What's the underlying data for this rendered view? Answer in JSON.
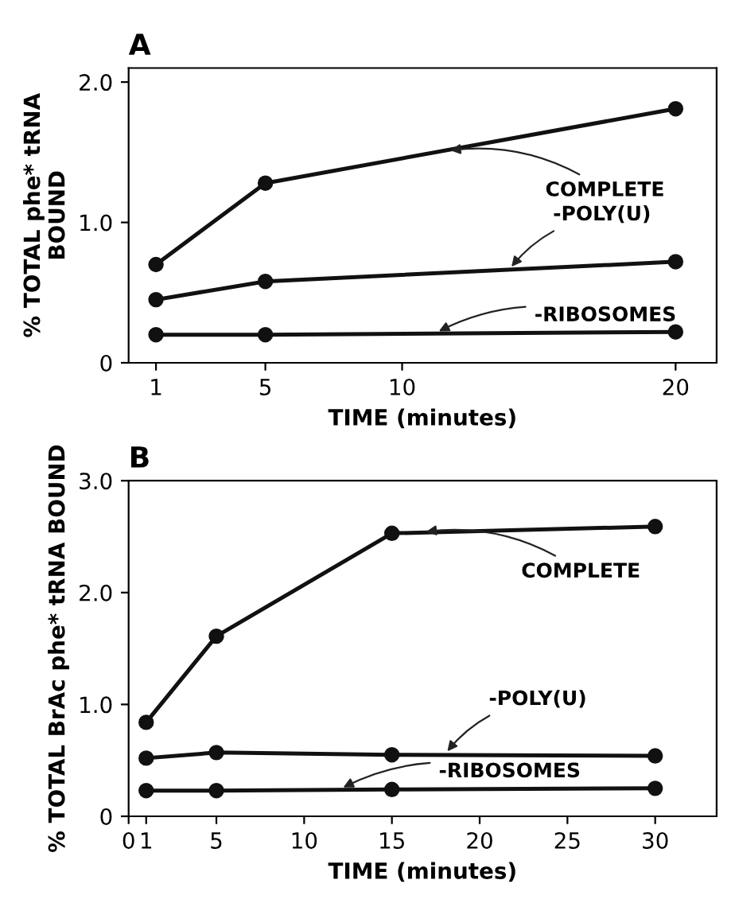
{
  "chart_data": [
    {
      "type": "line",
      "title": "A",
      "xlabel": "TIME (minutes)",
      "ylabel": "% TOTAL phe* tRNA\nBOUND",
      "x": [
        1,
        5,
        20
      ],
      "series": [
        {
          "color": "#111111",
          "values": [
            0.7,
            1.28,
            1.81
          ]
        },
        {
          "color": "#111111",
          "values": [
            0.45,
            0.58,
            0.72
          ]
        },
        {
          "color": "#111111",
          "values": [
            0.2,
            0.2,
            0.22
          ]
        }
      ],
      "xlim": [
        0,
        21.5
      ],
      "xticks": [
        1,
        5,
        10,
        20
      ],
      "ylim": [
        0,
        2.1
      ],
      "yticks": [
        0,
        {
          "value": 1,
          "label": "1.0"
        },
        {
          "value": 2,
          "label": "2.0"
        }
      ],
      "annotations": [
        {
          "text": "COMPLETE",
          "x": 11.6,
          "y": 1.51
        },
        {
          "text": "-POLY(U)",
          "x": 13.9,
          "y": 0.66
        },
        {
          "text": "-RIBOSOMES",
          "x": 11.2,
          "y": 0.21
        }
      ],
      "marker": "circle",
      "line_style": "solid",
      "grid": false,
      "legend": false
    },
    {
      "type": "line",
      "title": "B",
      "xlabel": "TIME (minutes)",
      "ylabel": "% TOTAL BrAc phe* tRNA BOUND",
      "x": [
        1,
        5,
        15,
        30
      ],
      "series": [
        {
          "color": "#111111",
          "values": [
            0.84,
            1.61,
            2.53,
            2.59
          ]
        },
        {
          "color": "#111111",
          "values": [
            0.52,
            0.57,
            0.55,
            0.54
          ]
        },
        {
          "color": "#111111",
          "values": [
            0.23,
            0.23,
            0.24,
            0.25
          ]
        }
      ],
      "xlim": [
        0,
        33.5
      ],
      "xticks": [
        0,
        1,
        5,
        10,
        15,
        20,
        25,
        30
      ],
      "ylim": [
        0,
        3.0
      ],
      "yticks": [
        0,
        {
          "value": 1,
          "label": "1.0"
        },
        {
          "value": 2,
          "label": "2.0"
        },
        {
          "value": 3,
          "label": "3.0"
        }
      ],
      "annotations": [
        {
          "text": "COMPLETE",
          "x": 16.7,
          "y": 2.54
        },
        {
          "text": "-POLY(U)",
          "x": 18.0,
          "y": 0.55
        },
        {
          "text": "-RIBOSOMES",
          "x": 12.0,
          "y": 0.24
        }
      ],
      "marker": "circle",
      "line_style": "solid",
      "grid": false,
      "legend": false
    }
  ]
}
